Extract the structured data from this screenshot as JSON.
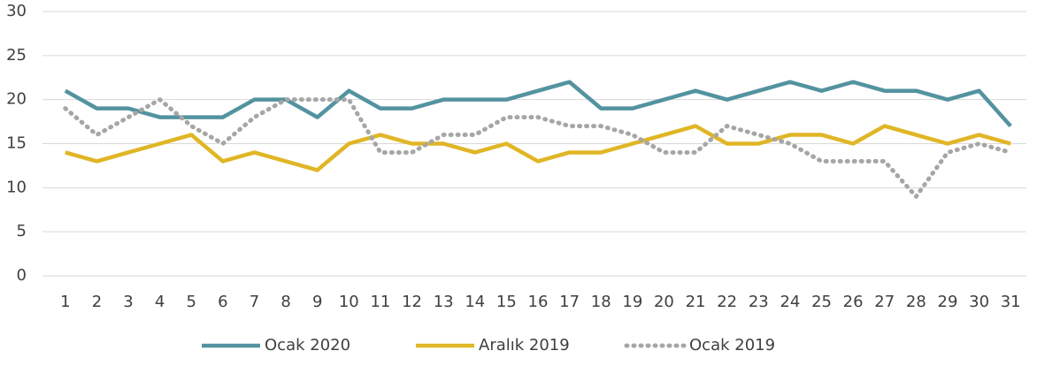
{
  "chart_data": {
    "type": "line",
    "categories": [
      "1",
      "2",
      "3",
      "4",
      "5",
      "6",
      "7",
      "8",
      "9",
      "10",
      "11",
      "12",
      "13",
      "14",
      "15",
      "16",
      "17",
      "18",
      "19",
      "20",
      "21",
      "22",
      "23",
      "24",
      "25",
      "26",
      "27",
      "28",
      "29",
      "30",
      "31"
    ],
    "series": [
      {
        "name": "Ocak 2020",
        "color": "#5393a0",
        "dash": "solid",
        "values": [
          21,
          19,
          19,
          18,
          18,
          18,
          20,
          20,
          18,
          21,
          19,
          19,
          20,
          20,
          20,
          21,
          22,
          19,
          19,
          20,
          21,
          20,
          21,
          22,
          21,
          22,
          21,
          21,
          20,
          21,
          17
        ]
      },
      {
        "name": "Aralık 2019",
        "color": "#e0b626",
        "dash": "solid",
        "values": [
          14,
          13,
          14,
          15,
          16,
          13,
          14,
          13,
          12,
          15,
          16,
          15,
          15,
          14,
          15,
          13,
          14,
          14,
          15,
          16,
          17,
          15,
          15,
          16,
          16,
          15,
          17,
          16,
          15,
          16,
          15
        ]
      },
      {
        "name": "Ocak 2019",
        "color": "#a6a6a6",
        "dash": "dotted",
        "values": [
          19,
          16,
          18,
          20,
          17,
          15,
          18,
          20,
          20,
          20,
          14,
          14,
          16,
          16,
          18,
          18,
          17,
          17,
          16,
          14,
          14,
          17,
          16,
          15,
          13,
          13,
          13,
          9,
          14,
          15,
          14
        ]
      }
    ],
    "ylim": [
      0,
      30
    ],
    "yticks": [
      0,
      5,
      10,
      15,
      20,
      25,
      30
    ],
    "grid": true,
    "legend": "bottom"
  }
}
